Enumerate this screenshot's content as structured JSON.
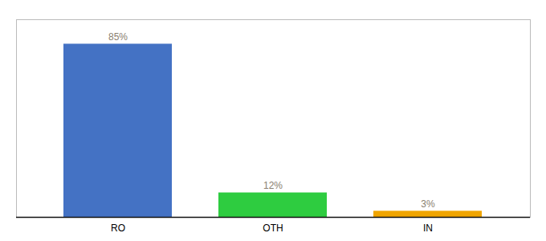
{
  "chart_data": {
    "type": "bar",
    "categories": [
      "RO",
      "OTH",
      "IN"
    ],
    "values": [
      85,
      12,
      3
    ],
    "value_labels": [
      "85%",
      "12%",
      "3%"
    ],
    "colors": [
      "#4472c4",
      "#2ecc40",
      "#f0a500"
    ],
    "ylim": [
      0,
      97
    ],
    "data_labels": true,
    "tick_labels": "x"
  }
}
